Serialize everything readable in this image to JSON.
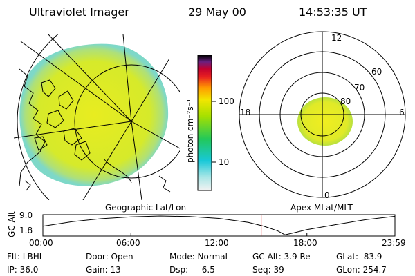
{
  "header": {
    "title": "Ultraviolet Imager",
    "date": "29 May 00",
    "time": "14:53:35 UT"
  },
  "colorbar": {
    "unit_label": "photon cm⁻²s⁻¹",
    "ticks": [
      "100",
      "10"
    ],
    "scale": "log"
  },
  "polar_plot": {
    "lat_labels": [
      "60",
      "70",
      "80"
    ],
    "mlt_labels": [
      "12",
      "18",
      "6",
      "0"
    ]
  },
  "map_titles": {
    "left": "Geographic Lat/Lon",
    "right": "Apex MLat/MLT"
  },
  "chart_data": {
    "type": "line",
    "ylabel": "GC Alt",
    "yticks": [
      "9.0",
      "1.8"
    ],
    "ylim": [
      1.8,
      9.0
    ],
    "xticks": [
      "00:00",
      "06:00",
      "12:00",
      "18:00",
      "23:59"
    ],
    "marker_time": "14:53",
    "series": [
      {
        "x": [
          0,
          2,
          4,
          6,
          8,
          10,
          12,
          14,
          15,
          16,
          16.5,
          17,
          18,
          20,
          22,
          24
        ],
        "y": [
          5.2,
          6.9,
          8.0,
          8.7,
          9.0,
          8.8,
          8.1,
          6.6,
          5.3,
          3.5,
          2.0,
          2.6,
          3.9,
          5.8,
          7.6,
          8.9
        ]
      }
    ]
  },
  "status": {
    "flt": "Flt: LBHL",
    "ip": "IP: 36.0",
    "door": "Door: Open",
    "gain": "Gain: 13",
    "mode": "Mode: Normal",
    "dsp": "Dsp:    -6.5",
    "gc_alt": "GC Alt: 3.9 Re",
    "seq": "Seq: 39",
    "glat": "GLat:  83.9",
    "glon": "GLon: 254.7"
  }
}
